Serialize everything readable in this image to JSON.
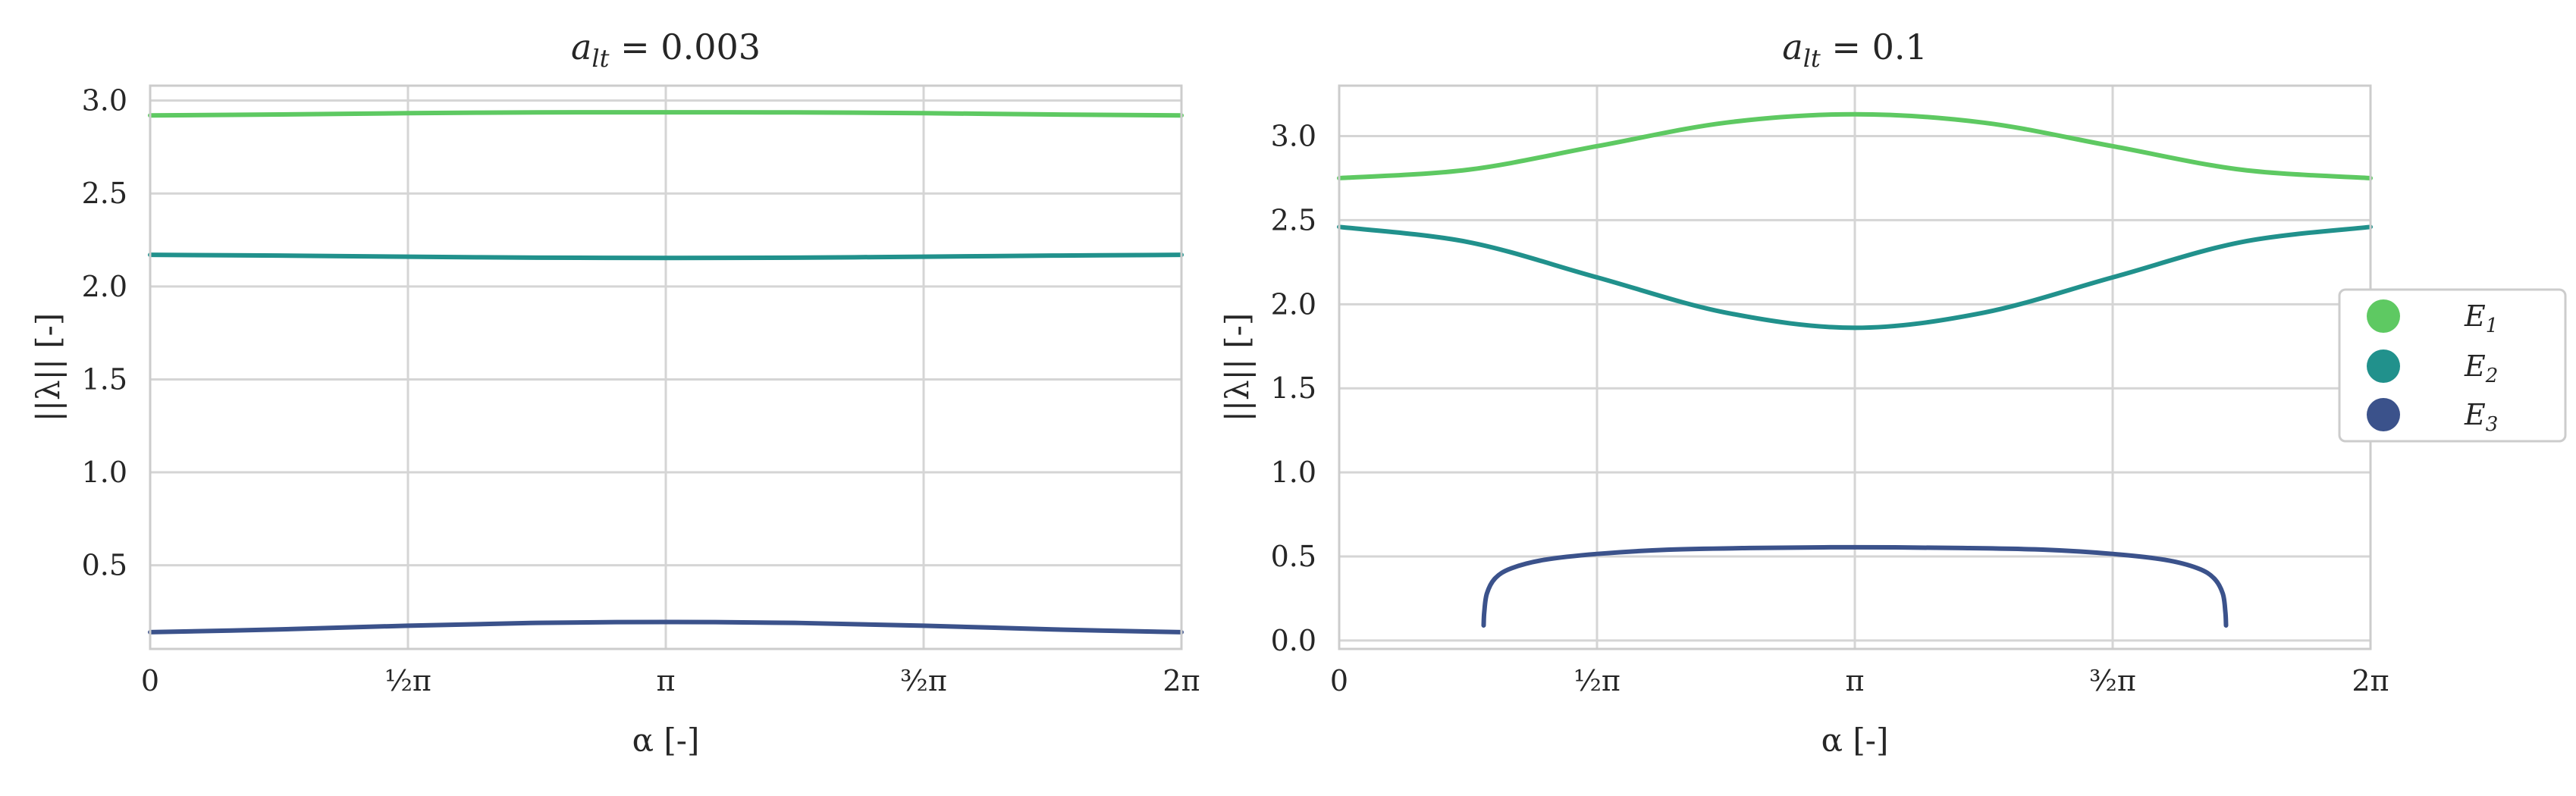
{
  "chart_data": [
    {
      "type": "line",
      "title": "a_lt = 0.003",
      "title_parts": {
        "symbol": "a",
        "subscript": "lt",
        "rest": " = 0.003"
      },
      "xlabel": "α [-]",
      "ylabel": "||λ|| [-]",
      "xlim": [
        0,
        6.2832
      ],
      "ylim": [
        0.05,
        3.08
      ],
      "xticks": [
        0,
        1.5708,
        3.1416,
        4.7124,
        6.2832
      ],
      "xtick_labels": [
        "0",
        "½π",
        "π",
        "³⁄₂π",
        "2π"
      ],
      "yticks": [
        0.5,
        1.0,
        1.5,
        2.0,
        2.5,
        3.0
      ],
      "ytick_labels": [
        "0.5",
        "1.0",
        "1.5",
        "2.0",
        "2.5",
        "3.0"
      ],
      "grid": true,
      "series": [
        {
          "name": "E1",
          "color": "#5ec962",
          "x": [
            0,
            0.7854,
            1.5708,
            2.3562,
            3.1416,
            3.927,
            4.7124,
            5.4978,
            6.2832
          ],
          "values": [
            2.92,
            2.925,
            2.932,
            2.936,
            2.937,
            2.936,
            2.932,
            2.925,
            2.92
          ]
        },
        {
          "name": "E2",
          "color": "#21918c",
          "x": [
            0,
            0.7854,
            1.5708,
            2.3562,
            3.1416,
            3.927,
            4.7124,
            5.4978,
            6.2832
          ],
          "values": [
            2.17,
            2.166,
            2.16,
            2.155,
            2.153,
            2.155,
            2.16,
            2.166,
            2.17
          ]
        },
        {
          "name": "E3",
          "color": "#3b528b",
          "x": [
            0,
            0.7854,
            1.5708,
            2.3562,
            3.1416,
            3.927,
            4.7124,
            5.4978,
            6.2832
          ],
          "values": [
            0.14,
            0.155,
            0.175,
            0.19,
            0.195,
            0.19,
            0.175,
            0.155,
            0.14
          ]
        }
      ]
    },
    {
      "type": "line",
      "title": "a_lt = 0.1",
      "title_parts": {
        "symbol": "a",
        "subscript": "lt",
        "rest": " = 0.1"
      },
      "xlabel": "α [-]",
      "ylabel": "||λ|| [-]",
      "xlim": [
        0,
        6.2832
      ],
      "ylim": [
        -0.05,
        3.3
      ],
      "xticks": [
        0,
        1.5708,
        3.1416,
        4.7124,
        6.2832
      ],
      "xtick_labels": [
        "0",
        "½π",
        "π",
        "³⁄₂π",
        "2π"
      ],
      "yticks": [
        0.0,
        0.5,
        1.0,
        1.5,
        2.0,
        2.5,
        3.0
      ],
      "ytick_labels": [
        "0.0",
        "0.5",
        "1.0",
        "1.5",
        "2.0",
        "2.5",
        "3.0"
      ],
      "grid": true,
      "series": [
        {
          "name": "E1",
          "color": "#5ec962",
          "x": [
            0,
            0.7854,
            1.5708,
            2.3562,
            3.1416,
            3.927,
            4.7124,
            5.4978,
            6.2832
          ],
          "values": [
            2.75,
            2.8,
            2.94,
            3.08,
            3.13,
            3.08,
            2.94,
            2.8,
            2.75
          ]
        },
        {
          "name": "E2",
          "color": "#21918c",
          "x": [
            0,
            0.7854,
            1.5708,
            2.3562,
            3.1416,
            3.927,
            4.7124,
            5.4978,
            6.2832
          ],
          "values": [
            2.46,
            2.37,
            2.16,
            1.95,
            1.86,
            1.95,
            2.16,
            2.37,
            2.46
          ]
        },
        {
          "name": "E3",
          "color": "#3b528b",
          "x": [
            0.88,
            0.884,
            0.9,
            0.95,
            1.05,
            1.25,
            1.5708,
            2.0,
            2.5,
            3.1416,
            3.8,
            4.3,
            4.7124,
            5.03,
            5.23,
            5.33,
            5.383,
            5.399,
            5.403
          ],
          "values": [
            0.09,
            0.17,
            0.28,
            0.37,
            0.43,
            0.48,
            0.515,
            0.54,
            0.55,
            0.555,
            0.55,
            0.54,
            0.515,
            0.48,
            0.43,
            0.37,
            0.28,
            0.17,
            0.09
          ]
        }
      ]
    }
  ],
  "legend": {
    "placement": "right",
    "items": [
      {
        "label": "E1",
        "symbol": "E",
        "subscript": "1",
        "color": "#5ec962"
      },
      {
        "label": "E2",
        "symbol": "E",
        "subscript": "2",
        "color": "#21918c"
      },
      {
        "label": "E3",
        "symbol": "E",
        "subscript": "3",
        "color": "#3b528b"
      }
    ]
  }
}
